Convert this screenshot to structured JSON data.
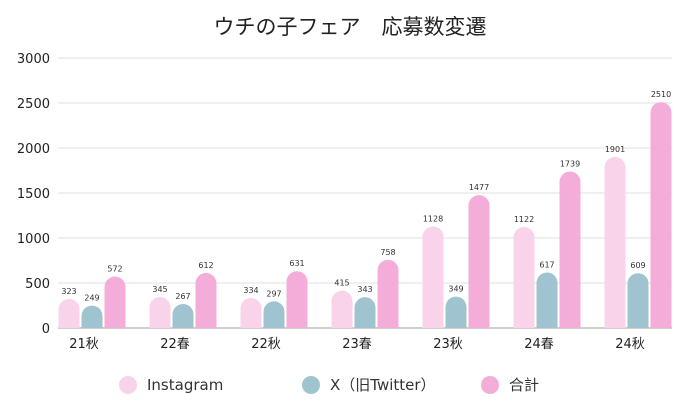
{
  "chart_data": {
    "type": "bar",
    "title": "ウチの子フェア　応募数変遷",
    "xlabel": "",
    "ylabel": "",
    "ylim": [
      0,
      3000
    ],
    "yticks": [
      0,
      500,
      1000,
      1500,
      2000,
      2500,
      3000
    ],
    "grid": true,
    "legend_position": "bottom",
    "categories": [
      "21秋",
      "22春",
      "22秋",
      "23春",
      "23秋",
      "24春",
      "24秋"
    ],
    "series": [
      {
        "name": "Instagram",
        "color": "#f8d3ea",
        "values": [
          323,
          345,
          334,
          415,
          1128,
          1122,
          1901
        ]
      },
      {
        "name": "X（旧Twitter）",
        "color": "#9fc3cf",
        "values": [
          249,
          267,
          297,
          343,
          349,
          617,
          609
        ]
      },
      {
        "name": "合計",
        "color": "#f4acd9",
        "values": [
          572,
          612,
          631,
          758,
          1477,
          1739,
          2510
        ]
      }
    ]
  }
}
